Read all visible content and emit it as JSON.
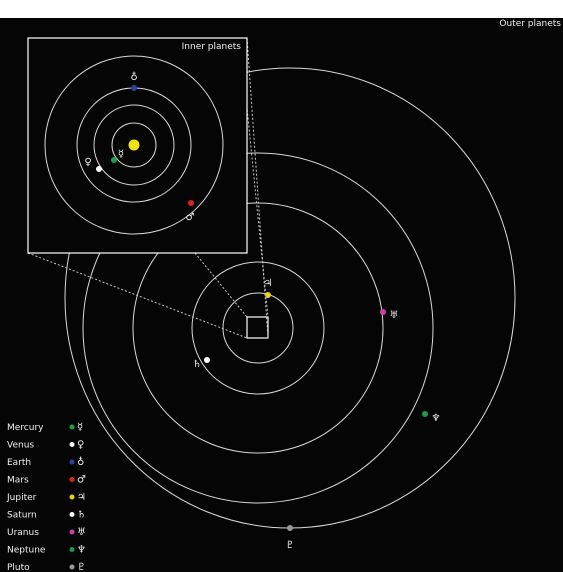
{
  "titles": {
    "outer": "Outer planets",
    "inner": "Inner planets"
  },
  "planets": [
    {
      "name": "Mercury",
      "symbol": "☿",
      "color": "#1aa34a"
    },
    {
      "name": "Venus",
      "symbol": "♀",
      "color": "#ffffff"
    },
    {
      "name": "Earth",
      "symbol": "♁",
      "color": "#2f3fa8"
    },
    {
      "name": "Mars",
      "symbol": "♂",
      "color": "#e0241d"
    },
    {
      "name": "Jupiter",
      "symbol": "♃",
      "color": "#e6d21a"
    },
    {
      "name": "Saturn",
      "symbol": "♄",
      "color": "#ffffff"
    },
    {
      "name": "Uranus",
      "symbol": "♅",
      "color": "#d43fae"
    },
    {
      "name": "Neptune",
      "symbol": "♆",
      "color": "#1a9a4a"
    },
    {
      "name": "Pluto",
      "symbol": "♇",
      "color": "#9a9a9a"
    }
  ],
  "colors": {
    "sun": "#f2e21a",
    "background": "#050505",
    "orbit": "#d9d9d9"
  }
}
